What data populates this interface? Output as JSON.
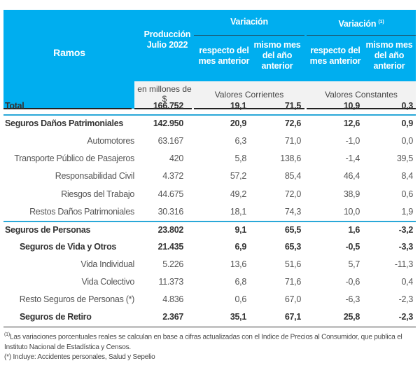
{
  "header": {
    "ramos": "Ramos",
    "produccion": "Producción Julio 2022",
    "variacion_corriente": "Variación",
    "variacion_constante": "Variación",
    "variacion_constante_note": "(1)",
    "respecto_mes_anterior": "respecto del mes anterior",
    "mismo_mes_anio_anterior": "mismo mes del año anterior",
    "unidad": "en millones de $",
    "valores_corrientes": "Valores Corrientes",
    "valores_constantes": "Valores Constantes"
  },
  "rows": [
    {
      "label": "Total",
      "level": 0,
      "bold": true,
      "prod": "166.752",
      "v1": "19,1",
      "v2": "71,5",
      "v3": "10,9",
      "v4": "0,3"
    },
    {
      "label": "Seguros Daños Patrimoniales",
      "level": 0,
      "bold": true,
      "prod": "142.950",
      "v1": "20,9",
      "v2": "72,6",
      "v3": "12,6",
      "v4": "0,9"
    },
    {
      "label": "Automotores",
      "level": 2,
      "bold": false,
      "prod": "63.167",
      "v1": "6,3",
      "v2": "71,0",
      "v3": "-1,0",
      "v4": "0,0"
    },
    {
      "label": "Transporte Público de Pasajeros",
      "level": 2,
      "bold": false,
      "prod": "420",
      "v1": "5,8",
      "v2": "138,6",
      "v3": "-1,4",
      "v4": "39,5"
    },
    {
      "label": "Responsabilidad Civil",
      "level": 2,
      "bold": false,
      "prod": "4.372",
      "v1": "57,2",
      "v2": "85,4",
      "v3": "46,4",
      "v4": "8,4"
    },
    {
      "label": "Riesgos del Trabajo",
      "level": 2,
      "bold": false,
      "prod": "44.675",
      "v1": "49,2",
      "v2": "72,0",
      "v3": "38,9",
      "v4": "0,6"
    },
    {
      "label": "Restos Daños Patrimoniales",
      "level": 2,
      "bold": false,
      "prod": "30.316",
      "v1": "18,1",
      "v2": "74,3",
      "v3": "10,0",
      "v4": "1,9"
    },
    {
      "label": "Seguros de Personas",
      "level": 0,
      "bold": true,
      "prod": "23.802",
      "v1": "9,1",
      "v2": "65,5",
      "v3": "1,6",
      "v4": "-3,2"
    },
    {
      "label": "Seguros de Vida y Otros",
      "level": 1,
      "bold": true,
      "prod": "21.435",
      "v1": "6,9",
      "v2": "65,3",
      "v3": "-0,5",
      "v4": "-3,3"
    },
    {
      "label": "Vida Individual",
      "level": 2,
      "bold": false,
      "prod": "5.226",
      "v1": "13,6",
      "v2": "51,6",
      "v3": "5,7",
      "v4": "-11,3"
    },
    {
      "label": "Vida Colectivo",
      "level": 2,
      "bold": false,
      "prod": "11.373",
      "v1": "6,8",
      "v2": "71,6",
      "v3": "-0,6",
      "v4": "0,4"
    },
    {
      "label": "Resto Seguros de Personas (*)",
      "level": 2,
      "bold": false,
      "prod": "4.836",
      "v1": "0,6",
      "v2": "67,0",
      "v3": "-6,3",
      "v4": "-2,3"
    },
    {
      "label": "Seguros de Retiro",
      "level": 1,
      "bold": true,
      "prod": "2.367",
      "v1": "35,1",
      "v2": "67,1",
      "v3": "25,8",
      "v4": "-2,3"
    }
  ],
  "footnotes": {
    "note1_mark": "(1)",
    "note1_line1": "Las variaciones porcentuales reales se calculan en base a cifras actualizadas con  el Indice de Precios al Consumidor, que publica el",
    "note1_line2": "Instituto Nacional de Estadística y  Censos.",
    "note2": "(*) Incluye: Accidentes personales, Salud y Sepelio"
  },
  "colors": {
    "header_blue": "#00AEEF",
    "separator": "#2aa8d8"
  }
}
